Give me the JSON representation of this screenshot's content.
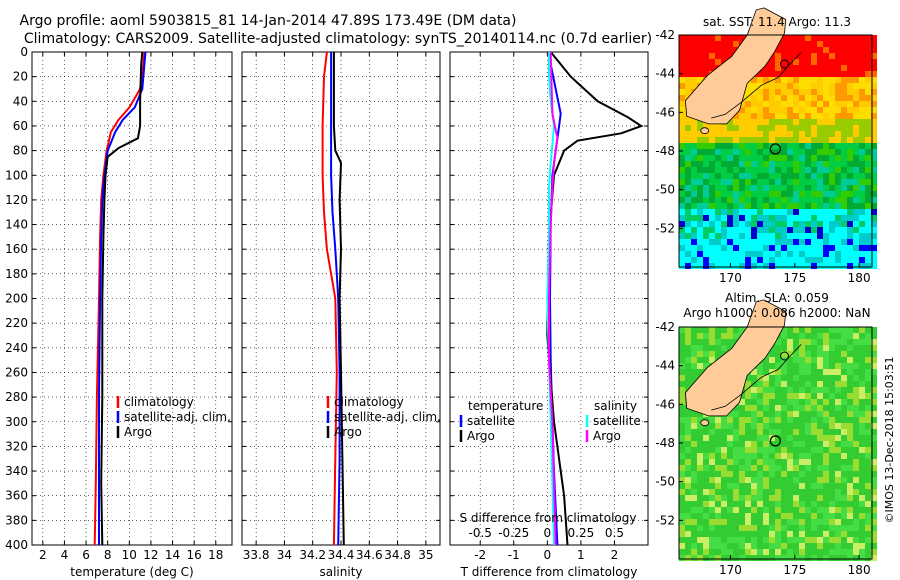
{
  "figure": {
    "title_line1": "Argo profile: aoml 5903815_81 14-Jan-2014 47.89S 173.49E (DM data)",
    "title_line2": "Climatology: CARS2009. Satellite-adjusted climatology: synTS_20140114.nc (0.7d earlier)",
    "watermark": "©IMOS 13-Dec-2018 15:03:51"
  },
  "colors": {
    "climatology": "#ff0000",
    "satellite": "#0000ff",
    "argo": "#000000",
    "sat_salinity": "#00ffff",
    "clim_salinity": "#ff00ff"
  },
  "chart_data": [
    {
      "id": "temperature",
      "type": "line",
      "xlabel": "temperature (deg C)",
      "ylabel": "",
      "xlim": [
        1,
        19.5
      ],
      "ylim": [
        400,
        0
      ],
      "xticks": [
        2,
        4,
        6,
        8,
        10,
        12,
        14,
        16,
        18
      ],
      "yticks": [
        0,
        20,
        40,
        60,
        80,
        100,
        120,
        140,
        160,
        180,
        200,
        220,
        240,
        260,
        280,
        300,
        320,
        340,
        360,
        380,
        400
      ],
      "grid": true,
      "legend_position": "bottom-right",
      "legend": [
        "climatology",
        "satellite-adj. clim.",
        "Argo"
      ],
      "series": [
        {
          "name": "climatology",
          "color": "#ff0000",
          "x": [
            11.4,
            11.3,
            11.0,
            10.0,
            9.0,
            8.3,
            7.9,
            7.6,
            7.4,
            7.3,
            7.2,
            7.0,
            6.9,
            6.8
          ],
          "y": [
            0,
            10,
            30,
            45,
            55,
            65,
            80,
            100,
            120,
            150,
            200,
            280,
            350,
            400
          ]
        },
        {
          "name": "satellite-adj. clim.",
          "color": "#0000ff",
          "x": [
            11.5,
            11.4,
            11.2,
            10.5,
            9.4,
            8.7,
            8.0,
            7.7,
            7.5,
            7.4,
            7.3,
            7.2,
            7.2,
            7.2
          ],
          "y": [
            0,
            10,
            30,
            45,
            55,
            65,
            80,
            100,
            120,
            150,
            200,
            280,
            350,
            400
          ]
        },
        {
          "name": "Argo",
          "color": "#000000",
          "x": [
            11.2,
            11.1,
            11.0,
            11.0,
            10.8,
            9.0,
            8.0,
            7.8,
            7.7,
            7.6,
            7.5,
            7.5,
            7.4,
            7.5
          ],
          "y": [
            0,
            10,
            40,
            60,
            70,
            78,
            85,
            100,
            120,
            150,
            200,
            280,
            350,
            400
          ]
        }
      ]
    },
    {
      "id": "salinity",
      "type": "line",
      "xlabel": "salinity",
      "ylabel": "",
      "xlim": [
        33.7,
        35.1
      ],
      "ylim": [
        400,
        0
      ],
      "xticks": [
        33.8,
        34,
        34.2,
        34.4,
        34.6,
        34.8,
        35
      ],
      "xticklabels": [
        "33.8",
        "34",
        "34.2",
        "34.4",
        "34.6",
        "34.8",
        "35"
      ],
      "grid": true,
      "legend_position": "bottom-right",
      "legend": [
        "climatology",
        "satellite-adj. clim.",
        "Argo"
      ],
      "series": [
        {
          "name": "climatology",
          "color": "#ff0000",
          "x": [
            34.3,
            34.28,
            34.27,
            34.27,
            34.28,
            34.3,
            34.33,
            34.36,
            34.37,
            34.36,
            34.35
          ],
          "y": [
            0,
            20,
            60,
            100,
            130,
            160,
            180,
            200,
            260,
            330,
            400
          ]
        },
        {
          "name": "satellite-adj. clim.",
          "color": "#0000ff",
          "x": [
            34.33,
            34.33,
            34.33,
            34.33,
            34.34,
            34.36,
            34.37,
            34.38,
            34.39,
            34.39,
            34.38
          ],
          "y": [
            0,
            20,
            60,
            100,
            130,
            160,
            180,
            200,
            260,
            330,
            400
          ]
        },
        {
          "name": "Argo",
          "color": "#000000",
          "x": [
            34.35,
            34.35,
            34.35,
            34.36,
            34.4,
            34.39,
            34.4,
            34.39,
            34.4,
            34.41,
            34.42
          ],
          "y": [
            0,
            20,
            60,
            80,
            90,
            120,
            160,
            200,
            260,
            330,
            400
          ]
        }
      ]
    },
    {
      "id": "difference",
      "type": "line",
      "xlabel": "T difference from climatology",
      "top_xlabel": "S difference from climatology",
      "xlim": [
        -2.9,
        3.0
      ],
      "ylim": [
        400,
        0
      ],
      "xticks": [
        -2,
        -1,
        0,
        1,
        2
      ],
      "top_xticks": [
        -0.5,
        -0.25,
        0,
        0.25,
        0.5
      ],
      "top_xticklabels": [
        "-0.5",
        "-0.25",
        "0",
        "0.25",
        "0.5"
      ],
      "grid": true,
      "legend_position": "bottom",
      "legend_temperature_title": "temperature",
      "legend_salinity_title": "salinity",
      "legend_temperature": [
        "satellite",
        "Argo"
      ],
      "legend_salinity": [
        "satellite",
        "Argo"
      ],
      "series": [
        {
          "name": "temperature satellite",
          "color": "#0000ff",
          "x": [
            0.05,
            0.1,
            0.25,
            0.4,
            0.35,
            0.3,
            0.25,
            0.15,
            0.1,
            0.08,
            0.1,
            0.15,
            0.2,
            0.25,
            0.3
          ],
          "y": [
            0,
            10,
            30,
            50,
            60,
            70,
            80,
            100,
            140,
            200,
            250,
            300,
            340,
            370,
            400
          ]
        },
        {
          "name": "temperature Argo",
          "color": "#000000",
          "x": [
            0.1,
            0.4,
            0.7,
            1.5,
            2.4,
            2.8,
            2.2,
            0.9,
            0.5,
            0.2,
            0.05,
            0.0,
            0.2,
            0.5,
            0.6
          ],
          "y": [
            0,
            10,
            20,
            40,
            53,
            60,
            66,
            72,
            80,
            100,
            150,
            230,
            300,
            360,
            400
          ]
        },
        {
          "name": "salinity satellite",
          "color": "#00ffff",
          "x": [
            0.05,
            0.05,
            0.1,
            0.2,
            0.15,
            0.1,
            0.05,
            0.05,
            0.0,
            0.05,
            0.1,
            0.15,
            0.2
          ],
          "y": [
            0,
            20,
            40,
            60,
            75,
            90,
            110,
            150,
            200,
            250,
            300,
            350,
            400
          ]
        },
        {
          "name": "salinity Argo",
          "color": "#ff00ff",
          "x": [
            0.1,
            0.12,
            0.15,
            0.3,
            0.2,
            0.15,
            0.1,
            0.05,
            0.05,
            0.15,
            0.2,
            0.25
          ],
          "y": [
            0,
            20,
            50,
            70,
            90,
            110,
            140,
            200,
            250,
            300,
            350,
            400
          ]
        }
      ]
    },
    {
      "id": "sst_map",
      "type": "heatmap",
      "title": "sat. SST: 11.4 Argo: 11.3",
      "xlim": [
        166,
        181
      ],
      "ylim": [
        -54,
        -42
      ],
      "xticks": [
        170,
        175,
        180
      ],
      "yticks": [
        -42,
        -44,
        -46,
        -48,
        -50,
        -52
      ],
      "argo_position": [
        173.49,
        -47.89
      ]
    },
    {
      "id": "sla_map",
      "type": "heatmap",
      "title_line1": "Altim. SLA: 0.059",
      "title_line2": "Argo h1000: 0.086 h2000: NaN",
      "xlim": [
        166,
        181
      ],
      "ylim": [
        -54,
        -42
      ],
      "xticks": [
        170,
        175,
        180
      ],
      "yticks": [
        -42,
        -44,
        -46,
        -48,
        -50,
        -52
      ],
      "argo_position": [
        173.49,
        -47.89
      ]
    }
  ]
}
